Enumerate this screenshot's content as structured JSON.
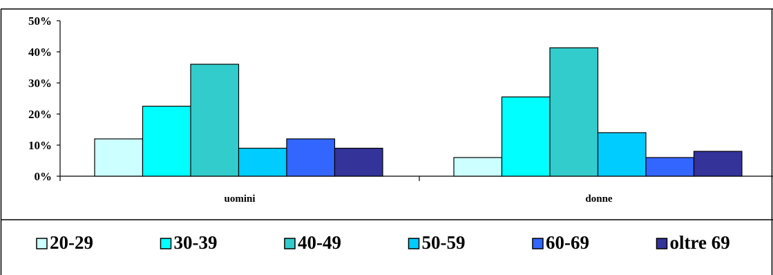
{
  "chart_data": {
    "type": "bar",
    "categories": [
      "uomini",
      "donne"
    ],
    "series": [
      {
        "name": "20-29",
        "values": [
          12,
          6
        ],
        "color": "#ccffff"
      },
      {
        "name": "30-39",
        "values": [
          22.5,
          25.5
        ],
        "color": "#00ffff"
      },
      {
        "name": "40-49",
        "values": [
          36,
          41.3
        ],
        "color": "#33cccc"
      },
      {
        "name": "50-59",
        "values": [
          9,
          14
        ],
        "color": "#00ccff"
      },
      {
        "name": "60-69",
        "values": [
          12,
          6
        ],
        "color": "#3366ff"
      },
      {
        "name": "oltre 69",
        "values": [
          9,
          8
        ],
        "color": "#333399"
      }
    ],
    "y_ticks": [
      "0%",
      "10%",
      "20%",
      "30%",
      "40%",
      "50%"
    ],
    "ylim": [
      0,
      50
    ],
    "y_unit": "%",
    "grid": false,
    "legend_position": "bottom",
    "title": "",
    "xlabel": "",
    "ylabel": ""
  }
}
